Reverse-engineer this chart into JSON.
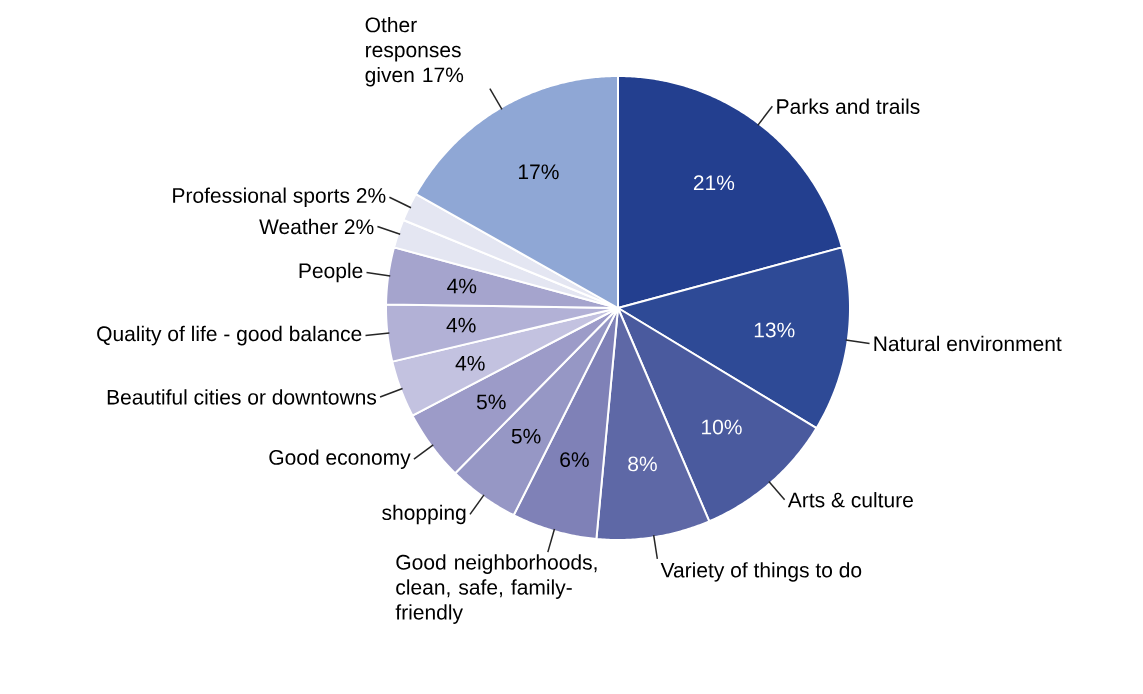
{
  "chart_data": {
    "type": "pie",
    "categories": [
      "Parks and trails",
      "Natural environment",
      "Arts & culture",
      "Variety of things to do",
      "Good neighborhoods, clean, safe, family-friendly",
      "shopping",
      "Good economy",
      "Beautiful cities or downtowns",
      "Quality of life - good balance",
      "People",
      "Weather 2%",
      "Professional sports 2%",
      "Other responses given 17%"
    ],
    "values": [
      21,
      13,
      10,
      8,
      6,
      5,
      5,
      4,
      4,
      4,
      2,
      2,
      17
    ],
    "value_labels": [
      "21%",
      "13%",
      "10%",
      "8%",
      "6%",
      "5%",
      "5%",
      "4%",
      "4%",
      "4%",
      null,
      null,
      "17%"
    ],
    "colors": [
      "#233f8f",
      "#2e4a96",
      "#4a5a9e",
      "#5e68a6",
      "#7f81b7",
      "#9697c5",
      "#9c9bc8",
      "#c3c2e0",
      "#b2b1d6",
      "#a5a4cd",
      "#e4e6f2",
      "#e4e6f2",
      "#8fa7d5"
    ]
  }
}
